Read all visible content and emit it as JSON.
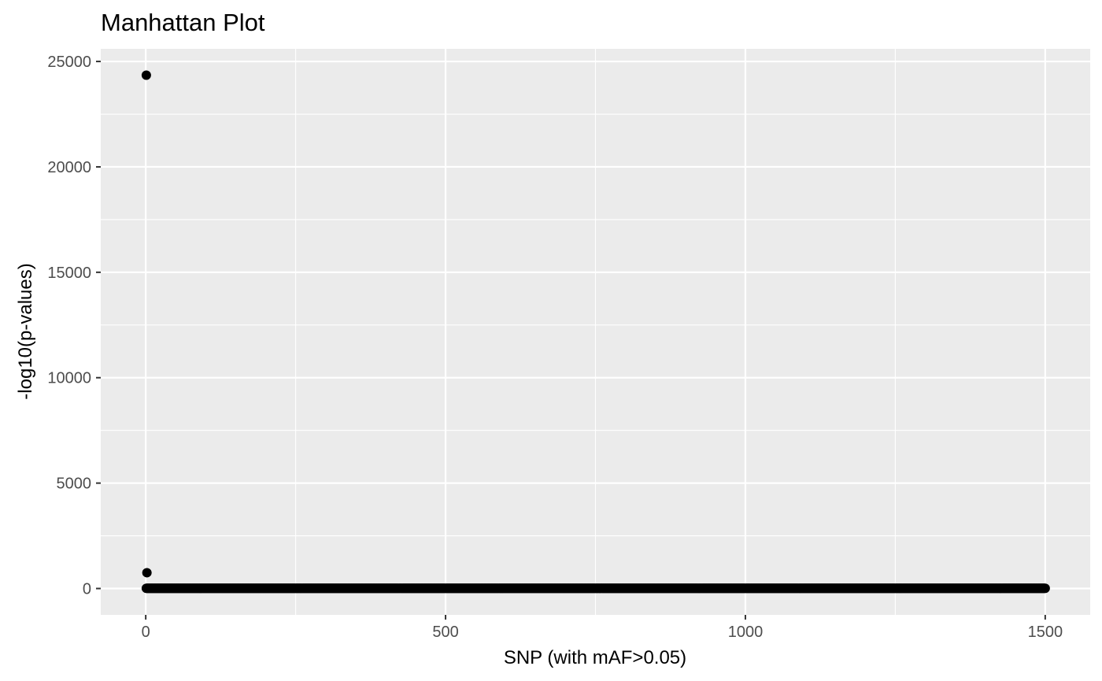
{
  "chart_data": {
    "type": "scatter",
    "title": "Manhattan Plot",
    "xlabel": "SNP (with mAF>0.05)",
    "ylabel": "-log10(p-values)",
    "xlim": [
      -75,
      1575
    ],
    "ylim": [
      -1250,
      25600
    ],
    "x_ticks": [
      0,
      500,
      1000,
      1500
    ],
    "x_tick_labels": [
      "0",
      "500",
      "1000",
      "1500"
    ],
    "y_ticks": [
      0,
      5000,
      10000,
      15000,
      20000,
      25000
    ],
    "y_tick_labels": [
      "0",
      "5000",
      "10000",
      "15000",
      "20000",
      "25000"
    ],
    "grid": true,
    "legend": "none",
    "point_color": "#000000",
    "panel_color": "#ebebeb",
    "grid_color": "#ffffff",
    "outliers": [
      {
        "x": 1,
        "y": 24350
      },
      {
        "x": 2,
        "y": 750
      }
    ],
    "baseline_series": {
      "x_start": 1,
      "x_end": 1500,
      "count": 1500,
      "y_approx": 10
    }
  }
}
